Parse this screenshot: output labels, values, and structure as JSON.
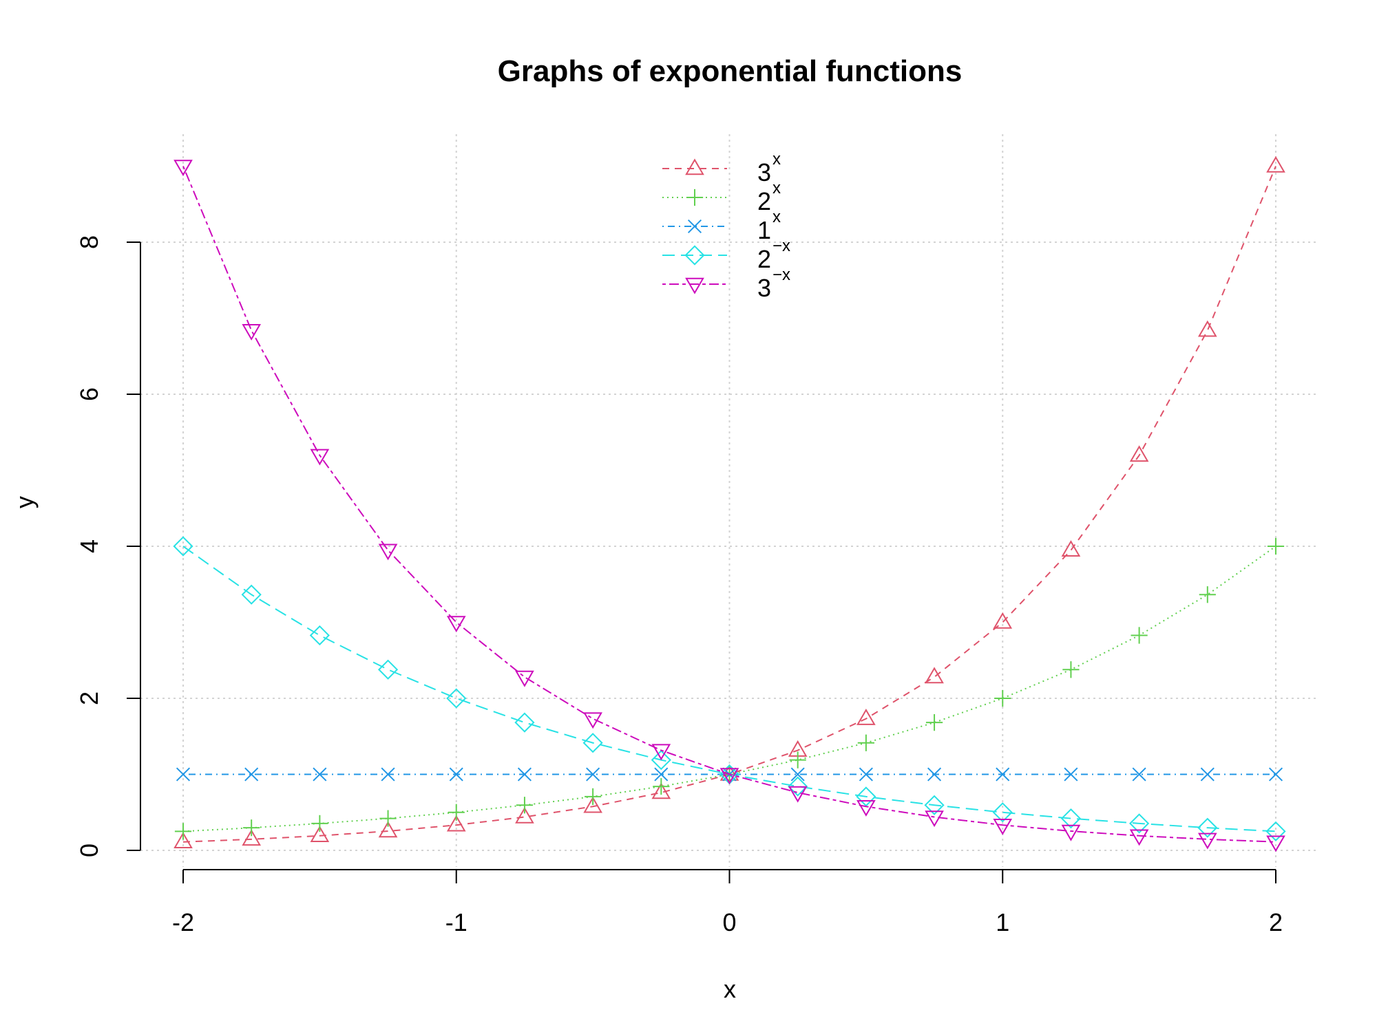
{
  "chart_data": {
    "type": "line",
    "title": "Graphs of exponential functions",
    "xlabel": "x",
    "ylabel": "y",
    "xlim": [
      -2,
      2
    ],
    "ylim": [
      0,
      9
    ],
    "x_ticks": [
      -2,
      -1,
      0,
      1,
      2
    ],
    "y_ticks": [
      0,
      2,
      4,
      6,
      8
    ],
    "grid": true,
    "legend_position": "top-center",
    "x": [
      -2,
      -1.75,
      -1.5,
      -1.25,
      -1,
      -0.75,
      -0.5,
      -0.25,
      0,
      0.25,
      0.5,
      0.75,
      1,
      1.25,
      1.5,
      1.75,
      2
    ],
    "series": [
      {
        "name": "3^x",
        "legend_base": "3",
        "legend_exp": "x",
        "color": "#DF536B",
        "line_style": "dashed",
        "marker": "triangle-up",
        "values": [
          0.111,
          0.146,
          0.192,
          0.253,
          0.333,
          0.439,
          0.577,
          0.76,
          1,
          1.316,
          1.732,
          2.28,
          3,
          3.948,
          5.196,
          6.839,
          9
        ]
      },
      {
        "name": "2^x",
        "legend_base": "2",
        "legend_exp": "x",
        "color": "#61D04F",
        "line_style": "dotted",
        "marker": "plus",
        "values": [
          0.25,
          0.297,
          0.354,
          0.42,
          0.5,
          0.595,
          0.707,
          0.841,
          1,
          1.189,
          1.414,
          1.682,
          2,
          2.378,
          2.828,
          3.364,
          4
        ]
      },
      {
        "name": "1^x",
        "legend_base": "1",
        "legend_exp": "x",
        "color": "#2297E6",
        "line_style": "dotdash",
        "marker": "cross",
        "values": [
          1,
          1,
          1,
          1,
          1,
          1,
          1,
          1,
          1,
          1,
          1,
          1,
          1,
          1,
          1,
          1,
          1
        ]
      },
      {
        "name": "2^-x",
        "legend_base": "2",
        "legend_exp": "−x",
        "color": "#28E2E5",
        "line_style": "longdash",
        "marker": "diamond",
        "values": [
          4,
          3.364,
          2.828,
          2.378,
          2,
          1.682,
          1.414,
          1.189,
          1,
          0.841,
          0.707,
          0.595,
          0.5,
          0.42,
          0.354,
          0.297,
          0.25
        ]
      },
      {
        "name": "3^-x",
        "legend_base": "3",
        "legend_exp": "−x",
        "color": "#CD0BBC",
        "line_style": "twodash",
        "marker": "triangle-down",
        "values": [
          9,
          6.839,
          5.196,
          3.948,
          3,
          2.28,
          1.732,
          1.316,
          1,
          0.76,
          0.577,
          0.439,
          0.333,
          0.253,
          0.192,
          0.146,
          0.111
        ]
      }
    ]
  }
}
